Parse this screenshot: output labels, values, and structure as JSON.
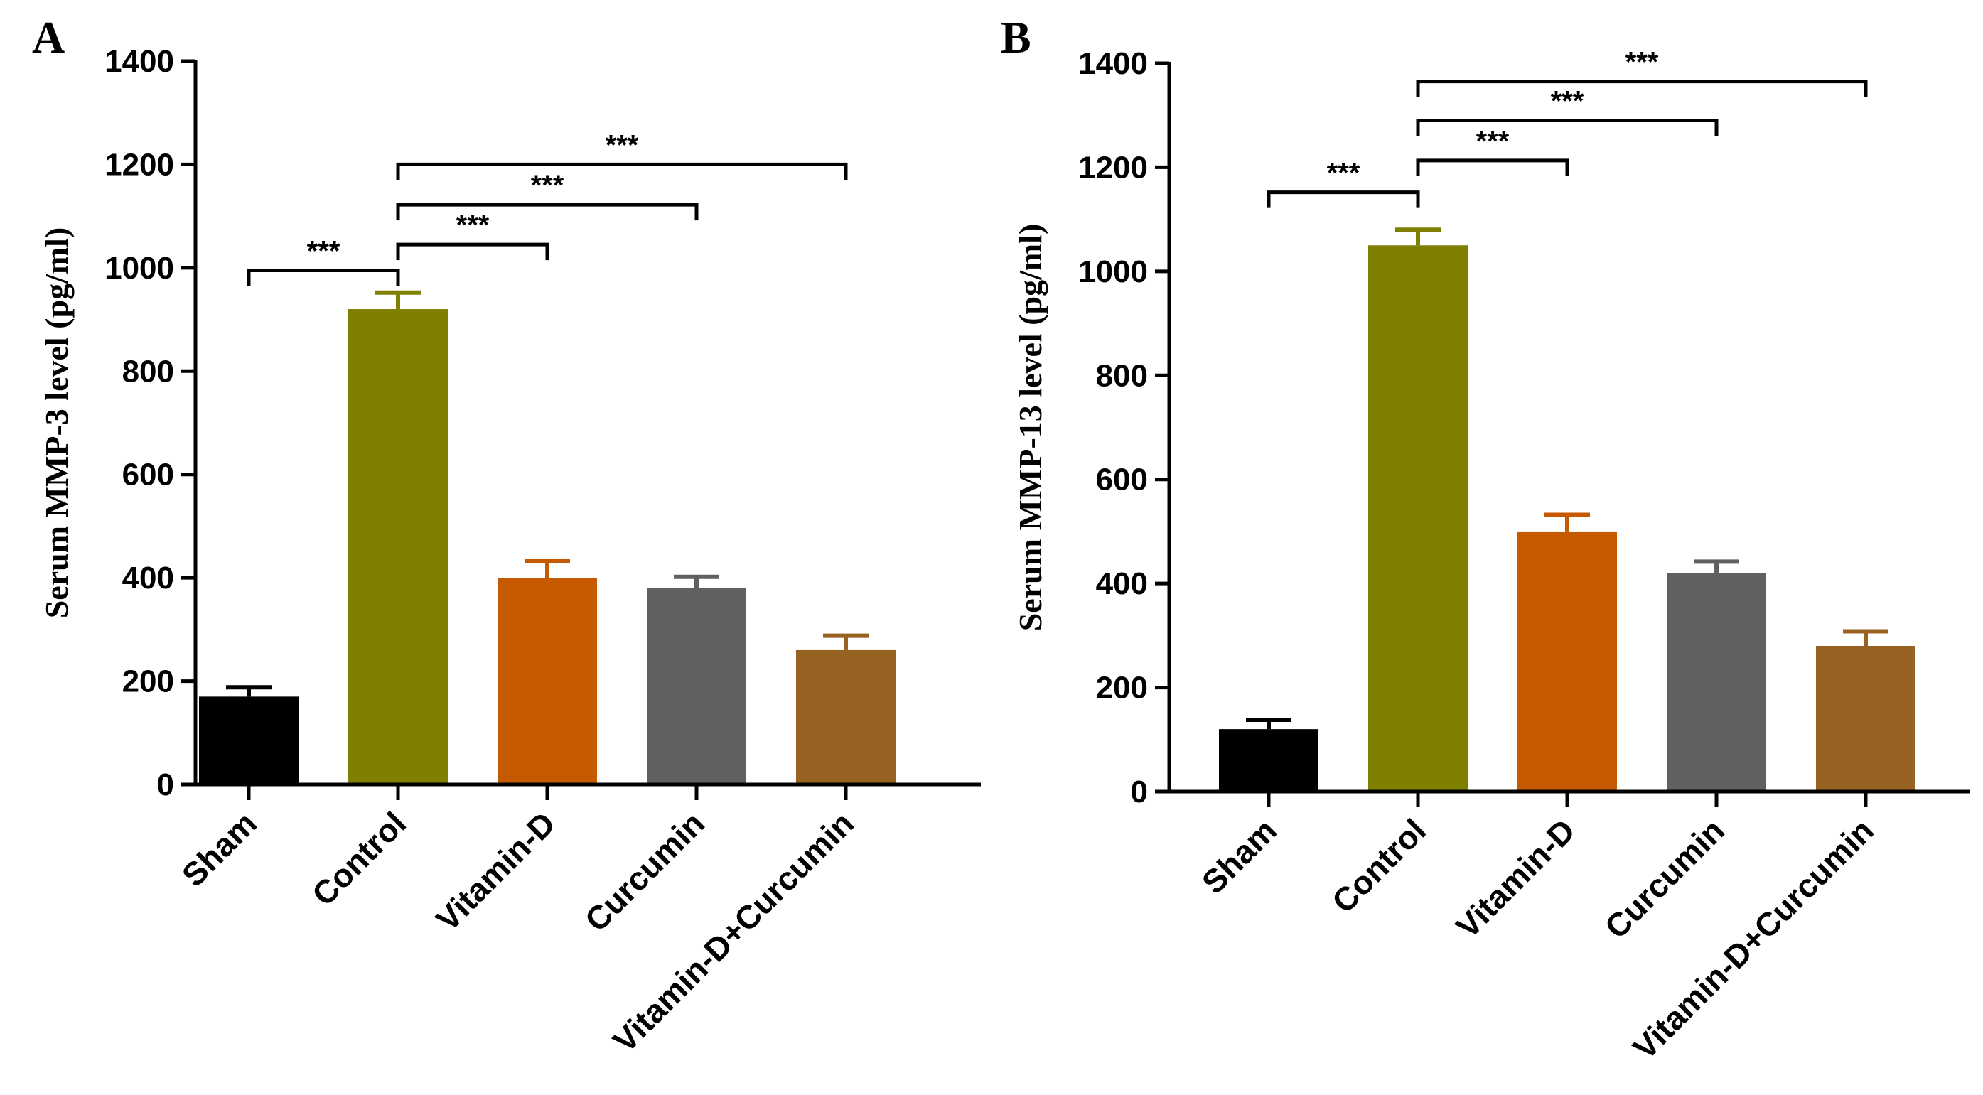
{
  "chart_data": [
    {
      "type": "bar",
      "panel_label": "A",
      "categories": [
        "Sham",
        "Control",
        "Vitamin-D",
        "Curcumin",
        "Vitamin-D+Curcumin"
      ],
      "values": [
        170,
        920,
        400,
        380,
        260
      ],
      "errors": [
        18,
        32,
        32,
        22,
        28
      ],
      "colors": [
        "#000000",
        "#808000",
        "#C55A00",
        "#606060",
        "#976222"
      ],
      "title": "",
      "xlabel": "",
      "ylabel": "Serum MMP-3 level (pg/ml)",
      "ylim": [
        0,
        1400
      ],
      "yticks": [
        0,
        200,
        400,
        600,
        800,
        1000,
        1200,
        1400
      ],
      "significance": [
        {
          "from": 0,
          "to": 1,
          "level": 995,
          "label": "***"
        },
        {
          "from": 1,
          "to": 2,
          "level": 1045,
          "label": "***"
        },
        {
          "from": 1,
          "to": 3,
          "level": 1122,
          "label": "***"
        },
        {
          "from": 1,
          "to": 4,
          "level": 1200,
          "label": "***"
        }
      ]
    },
    {
      "type": "bar",
      "panel_label": "B",
      "categories": [
        "Sham",
        "Control",
        "Vitamin-D",
        "Curcumin",
        "Vitamin-D+Curcumin"
      ],
      "values": [
        120,
        1050,
        500,
        420,
        280
      ],
      "errors": [
        18,
        30,
        32,
        22,
        28
      ],
      "colors": [
        "#000000",
        "#808000",
        "#C55A00",
        "#606060",
        "#976222"
      ],
      "title": "",
      "xlabel": "",
      "ylabel": "Serum MMP-13 level (pg/ml)",
      "ylim": [
        0,
        1400
      ],
      "yticks": [
        0,
        200,
        400,
        600,
        800,
        1000,
        1200,
        1400
      ],
      "significance": [
        {
          "from": 0,
          "to": 1,
          "level": 1152,
          "label": "***"
        },
        {
          "from": 1,
          "to": 2,
          "level": 1213,
          "label": "***"
        },
        {
          "from": 1,
          "to": 3,
          "level": 1290,
          "label": "***"
        },
        {
          "from": 1,
          "to": 4,
          "level": 1365,
          "label": "***"
        }
      ]
    }
  ]
}
